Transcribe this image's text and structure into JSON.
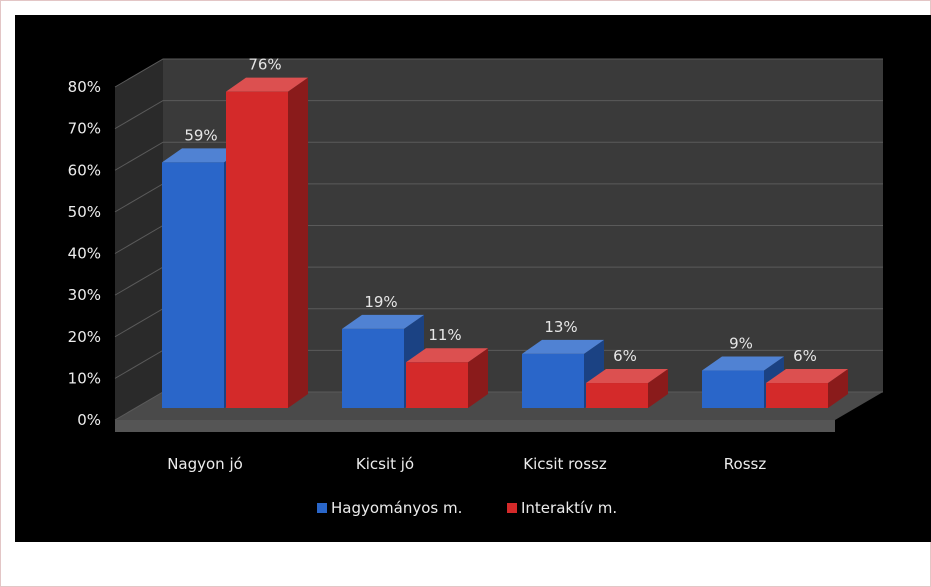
{
  "chart_data": {
    "type": "bar",
    "style": "3d-clustered-column",
    "categories": [
      "Nagyon jó",
      "Kicsit jó",
      "Kicsit rossz",
      "Rossz"
    ],
    "series": [
      {
        "name": "Hagyományos m.",
        "color": "#2a66c9",
        "values": [
          59,
          19,
          13,
          9
        ],
        "labels": [
          "59%",
          "19%",
          "13%",
          "9%"
        ]
      },
      {
        "name": "Interaktív m.",
        "color": "#d42a2a",
        "values": [
          76,
          11,
          6,
          6
        ],
        "labels": [
          "76%",
          "11%",
          "6%",
          "6%"
        ]
      }
    ],
    "ylim": [
      0,
      80
    ],
    "yticks": [
      "0%",
      "10%",
      "20%",
      "30%",
      "40%",
      "50%",
      "60%",
      "70%",
      "80%"
    ],
    "legend_position": "bottom",
    "background": "#000000",
    "wall_color": "#3a3a3a",
    "grid": true
  }
}
